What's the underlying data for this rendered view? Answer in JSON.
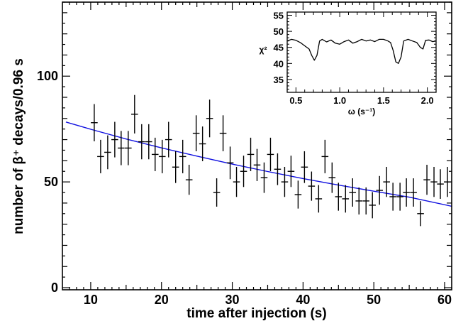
{
  "chart_data": [
    {
      "type": "scatter",
      "title": "",
      "xlabel": "time after injection (s)",
      "ylabel": "number of β⁺ decays/0.96 s",
      "xlim": [
        6,
        61
      ],
      "ylim": [
        -1,
        135
      ],
      "x_ticks": [
        "10",
        "20",
        "30",
        "40",
        "50",
        "60"
      ],
      "y_ticks": [
        "0",
        "50",
        "100"
      ],
      "grid": false,
      "legend": "none",
      "colors": {
        "points": "#000000",
        "fit": "#1010e0",
        "frame": "#000000"
      },
      "series": [
        {
          "kind": "data_with_error_bars",
          "x_halfwidth": 0.48,
          "points": [
            {
              "x": 10.5,
              "y": 78,
              "yerr": 8.8
            },
            {
              "x": 11.4,
              "y": 62,
              "yerr": 7.9
            },
            {
              "x": 12.4,
              "y": 64,
              "yerr": 8.0
            },
            {
              "x": 13.4,
              "y": 70,
              "yerr": 8.4
            },
            {
              "x": 14.3,
              "y": 66,
              "yerr": 8.1
            },
            {
              "x": 15.3,
              "y": 66,
              "yerr": 8.1
            },
            {
              "x": 16.2,
              "y": 82,
              "yerr": 9.1
            },
            {
              "x": 17.2,
              "y": 69,
              "yerr": 8.3
            },
            {
              "x": 18.2,
              "y": 69,
              "yerr": 8.3
            },
            {
              "x": 19.1,
              "y": 63,
              "yerr": 7.9
            },
            {
              "x": 20.1,
              "y": 62,
              "yerr": 7.9
            },
            {
              "x": 21.0,
              "y": 70,
              "yerr": 8.4
            },
            {
              "x": 22.0,
              "y": 57,
              "yerr": 7.5
            },
            {
              "x": 23.0,
              "y": 62,
              "yerr": 7.9
            },
            {
              "x": 23.9,
              "y": 51,
              "yerr": 7.1
            },
            {
              "x": 24.9,
              "y": 73,
              "yerr": 8.5
            },
            {
              "x": 25.8,
              "y": 68,
              "yerr": 8.2
            },
            {
              "x": 26.8,
              "y": 80,
              "yerr": 8.9
            },
            {
              "x": 27.8,
              "y": 45,
              "yerr": 6.7
            },
            {
              "x": 28.7,
              "y": 73,
              "yerr": 8.5
            },
            {
              "x": 29.7,
              "y": 59,
              "yerr": 7.7
            },
            {
              "x": 30.6,
              "y": 50,
              "yerr": 7.1
            },
            {
              "x": 31.6,
              "y": 55,
              "yerr": 7.4
            },
            {
              "x": 32.6,
              "y": 63,
              "yerr": 7.9
            },
            {
              "x": 33.5,
              "y": 58,
              "yerr": 7.6
            },
            {
              "x": 34.5,
              "y": 52,
              "yerr": 7.2
            },
            {
              "x": 35.4,
              "y": 63,
              "yerr": 7.9
            },
            {
              "x": 36.4,
              "y": 56,
              "yerr": 7.5
            },
            {
              "x": 37.4,
              "y": 50,
              "yerr": 7.1
            },
            {
              "x": 38.3,
              "y": 55,
              "yerr": 7.4
            },
            {
              "x": 39.3,
              "y": 44,
              "yerr": 6.6
            },
            {
              "x": 40.2,
              "y": 57,
              "yerr": 7.5
            },
            {
              "x": 41.2,
              "y": 48,
              "yerr": 6.9
            },
            {
              "x": 42.2,
              "y": 42,
              "yerr": 6.5
            },
            {
              "x": 43.1,
              "y": 62,
              "yerr": 7.9
            },
            {
              "x": 44.1,
              "y": 52,
              "yerr": 7.2
            },
            {
              "x": 45.0,
              "y": 43,
              "yerr": 6.6
            },
            {
              "x": 46.0,
              "y": 42,
              "yerr": 6.5
            },
            {
              "x": 47.0,
              "y": 45,
              "yerr": 6.7
            },
            {
              "x": 47.9,
              "y": 41,
              "yerr": 6.4
            },
            {
              "x": 48.9,
              "y": 41,
              "yerr": 6.4
            },
            {
              "x": 49.8,
              "y": 39,
              "yerr": 6.2
            },
            {
              "x": 50.8,
              "y": 46,
              "yerr": 6.8
            },
            {
              "x": 51.8,
              "y": 50,
              "yerr": 7.1
            },
            {
              "x": 52.7,
              "y": 43,
              "yerr": 6.6
            },
            {
              "x": 53.7,
              "y": 43,
              "yerr": 6.6
            },
            {
              "x": 54.6,
              "y": 45,
              "yerr": 6.7
            },
            {
              "x": 55.6,
              "y": 45,
              "yerr": 6.7
            },
            {
              "x": 56.6,
              "y": 35,
              "yerr": 5.9
            },
            {
              "x": 57.5,
              "y": 51,
              "yerr": 7.1
            },
            {
              "x": 58.5,
              "y": 50,
              "yerr": 7.1
            },
            {
              "x": 59.4,
              "y": 49,
              "yerr": 7.0
            },
            {
              "x": 60.4,
              "y": 50,
              "yerr": 7.1
            }
          ]
        },
        {
          "kind": "fit_curve",
          "points": [
            {
              "x": 6.5,
              "y": 78.3
            },
            {
              "x": 10,
              "y": 74.9
            },
            {
              "x": 15,
              "y": 70.3
            },
            {
              "x": 20,
              "y": 66.1
            },
            {
              "x": 25,
              "y": 62.2
            },
            {
              "x": 30,
              "y": 58.4
            },
            {
              "x": 35,
              "y": 54.9
            },
            {
              "x": 40,
              "y": 51.6
            },
            {
              "x": 45,
              "y": 48.5
            },
            {
              "x": 50,
              "y": 45.6
            },
            {
              "x": 55,
              "y": 42.8
            },
            {
              "x": 61,
              "y": 38.5
            }
          ]
        }
      ]
    },
    {
      "type": "line",
      "title": "",
      "xlabel": "ω (s⁻¹)",
      "ylabel": "χ²",
      "xlim": [
        0.4,
        2.1
      ],
      "ylim": [
        31,
        56
      ],
      "x_ticks": [
        "0.5",
        "1.0",
        "1.5",
        "2.0"
      ],
      "y_ticks": [
        "35",
        "40",
        "45",
        "50",
        "55"
      ],
      "grid": false,
      "legend": "none",
      "series": [
        {
          "points": [
            {
              "x": 0.4,
              "y": 47.0
            },
            {
              "x": 0.45,
              "y": 47.5
            },
            {
              "x": 0.5,
              "y": 47.2
            },
            {
              "x": 0.55,
              "y": 46.5
            },
            {
              "x": 0.6,
              "y": 45.5
            },
            {
              "x": 0.65,
              "y": 44.5
            },
            {
              "x": 0.68,
              "y": 42.5
            },
            {
              "x": 0.71,
              "y": 41.0
            },
            {
              "x": 0.74,
              "y": 42.5
            },
            {
              "x": 0.77,
              "y": 47.0
            },
            {
              "x": 0.8,
              "y": 47.5
            },
            {
              "x": 0.85,
              "y": 46.7
            },
            {
              "x": 0.9,
              "y": 47.3
            },
            {
              "x": 0.95,
              "y": 46.3
            },
            {
              "x": 1.0,
              "y": 46.0
            },
            {
              "x": 1.05,
              "y": 46.8
            },
            {
              "x": 1.1,
              "y": 47.3
            },
            {
              "x": 1.15,
              "y": 46.3
            },
            {
              "x": 1.2,
              "y": 46.8
            },
            {
              "x": 1.25,
              "y": 47.5
            },
            {
              "x": 1.3,
              "y": 47.0
            },
            {
              "x": 1.35,
              "y": 47.3
            },
            {
              "x": 1.4,
              "y": 46.8
            },
            {
              "x": 1.45,
              "y": 47.5
            },
            {
              "x": 1.5,
              "y": 47.5
            },
            {
              "x": 1.55,
              "y": 47.0
            },
            {
              "x": 1.58,
              "y": 46.5
            },
            {
              "x": 1.61,
              "y": 44.0
            },
            {
              "x": 1.64,
              "y": 40.5
            },
            {
              "x": 1.67,
              "y": 40.0
            },
            {
              "x": 1.7,
              "y": 42.0
            },
            {
              "x": 1.73,
              "y": 47.0
            },
            {
              "x": 1.78,
              "y": 47.5
            },
            {
              "x": 1.83,
              "y": 47.0
            },
            {
              "x": 1.88,
              "y": 46.5
            },
            {
              "x": 1.92,
              "y": 45.0
            },
            {
              "x": 1.95,
              "y": 44.5
            },
            {
              "x": 1.98,
              "y": 47.2
            },
            {
              "x": 2.02,
              "y": 47.3
            },
            {
              "x": 2.06,
              "y": 46.8
            },
            {
              "x": 2.1,
              "y": 47.0
            }
          ]
        }
      ]
    }
  ]
}
